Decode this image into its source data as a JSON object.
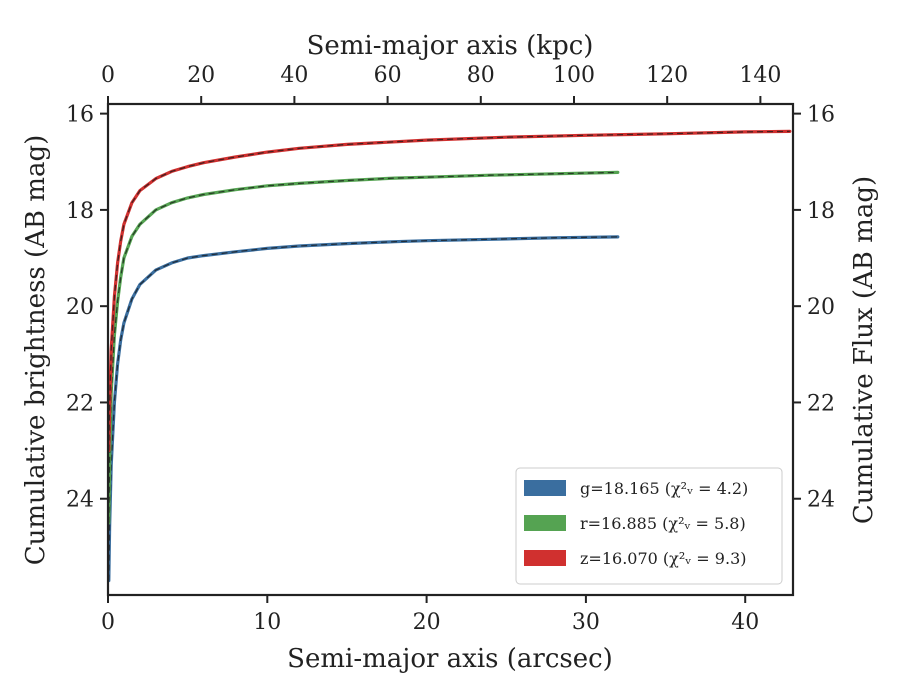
{
  "chart_data": {
    "type": "line",
    "xlabel": "Semi-major axis (arcsec)",
    "x2label": "Semi-major axis (kpc)",
    "ylabel": "Cumulative brightness (AB mag)",
    "y2label": "Cumulative Flux (AB mag)",
    "xlim": [
      0,
      43
    ],
    "x2lim": [
      0,
      147
    ],
    "ylim": [
      26,
      15.8
    ],
    "y_inverted": true,
    "xticks": [
      "0",
      "10",
      "20",
      "30",
      "40"
    ],
    "x2ticks": [
      "0",
      "20",
      "40",
      "60",
      "80",
      "100",
      "120",
      "140"
    ],
    "yticks": [
      "16",
      "18",
      "20",
      "22",
      "24"
    ],
    "legend_position": "lower-right",
    "grid": false,
    "series": [
      {
        "name": "g",
        "legend_label": "g=18.165 ",
        "chi_label": "(χ²ᵥ = 4.2)",
        "color": "#3a6e9f",
        "x": [
          0.05,
          0.1,
          0.2,
          0.4,
          0.6,
          0.8,
          1.0,
          1.5,
          2,
          3,
          4,
          5,
          6,
          8,
          10,
          12,
          15,
          18,
          20,
          24,
          28,
          32
        ],
        "y": [
          25.7,
          24.6,
          23.3,
          22.0,
          21.2,
          20.7,
          20.35,
          19.85,
          19.55,
          19.25,
          19.1,
          19.0,
          18.95,
          18.87,
          18.8,
          18.75,
          18.7,
          18.66,
          18.64,
          18.61,
          18.58,
          18.56
        ]
      },
      {
        "name": "r",
        "legend_label": "r=16.885 ",
        "chi_label": "(χ²ᵥ = 5.8)",
        "color": "#55a352",
        "x": [
          0.05,
          0.1,
          0.2,
          0.4,
          0.6,
          0.8,
          1.0,
          1.5,
          2,
          3,
          4,
          5,
          6,
          8,
          10,
          12,
          15,
          18,
          20,
          24,
          28,
          32
        ],
        "y": [
          24.5,
          23.2,
          21.8,
          20.6,
          19.9,
          19.4,
          19.0,
          18.55,
          18.3,
          18.0,
          17.85,
          17.75,
          17.68,
          17.58,
          17.5,
          17.45,
          17.39,
          17.34,
          17.32,
          17.28,
          17.25,
          17.22
        ]
      },
      {
        "name": "z",
        "legend_label": "z=16.070 ",
        "chi_label": "(χ²ᵥ = 9.3)",
        "color": "#d0302f",
        "x": [
          0.05,
          0.1,
          0.2,
          0.4,
          0.6,
          0.8,
          1.0,
          1.5,
          2,
          3,
          4,
          5,
          6,
          8,
          10,
          12,
          15,
          20,
          25,
          30,
          35,
          40,
          42.8
        ],
        "y": [
          23.0,
          22.1,
          20.9,
          19.8,
          19.1,
          18.65,
          18.3,
          17.85,
          17.6,
          17.35,
          17.2,
          17.1,
          17.02,
          16.9,
          16.8,
          16.72,
          16.64,
          16.55,
          16.49,
          16.45,
          16.42,
          16.38,
          16.37
        ]
      }
    ]
  }
}
